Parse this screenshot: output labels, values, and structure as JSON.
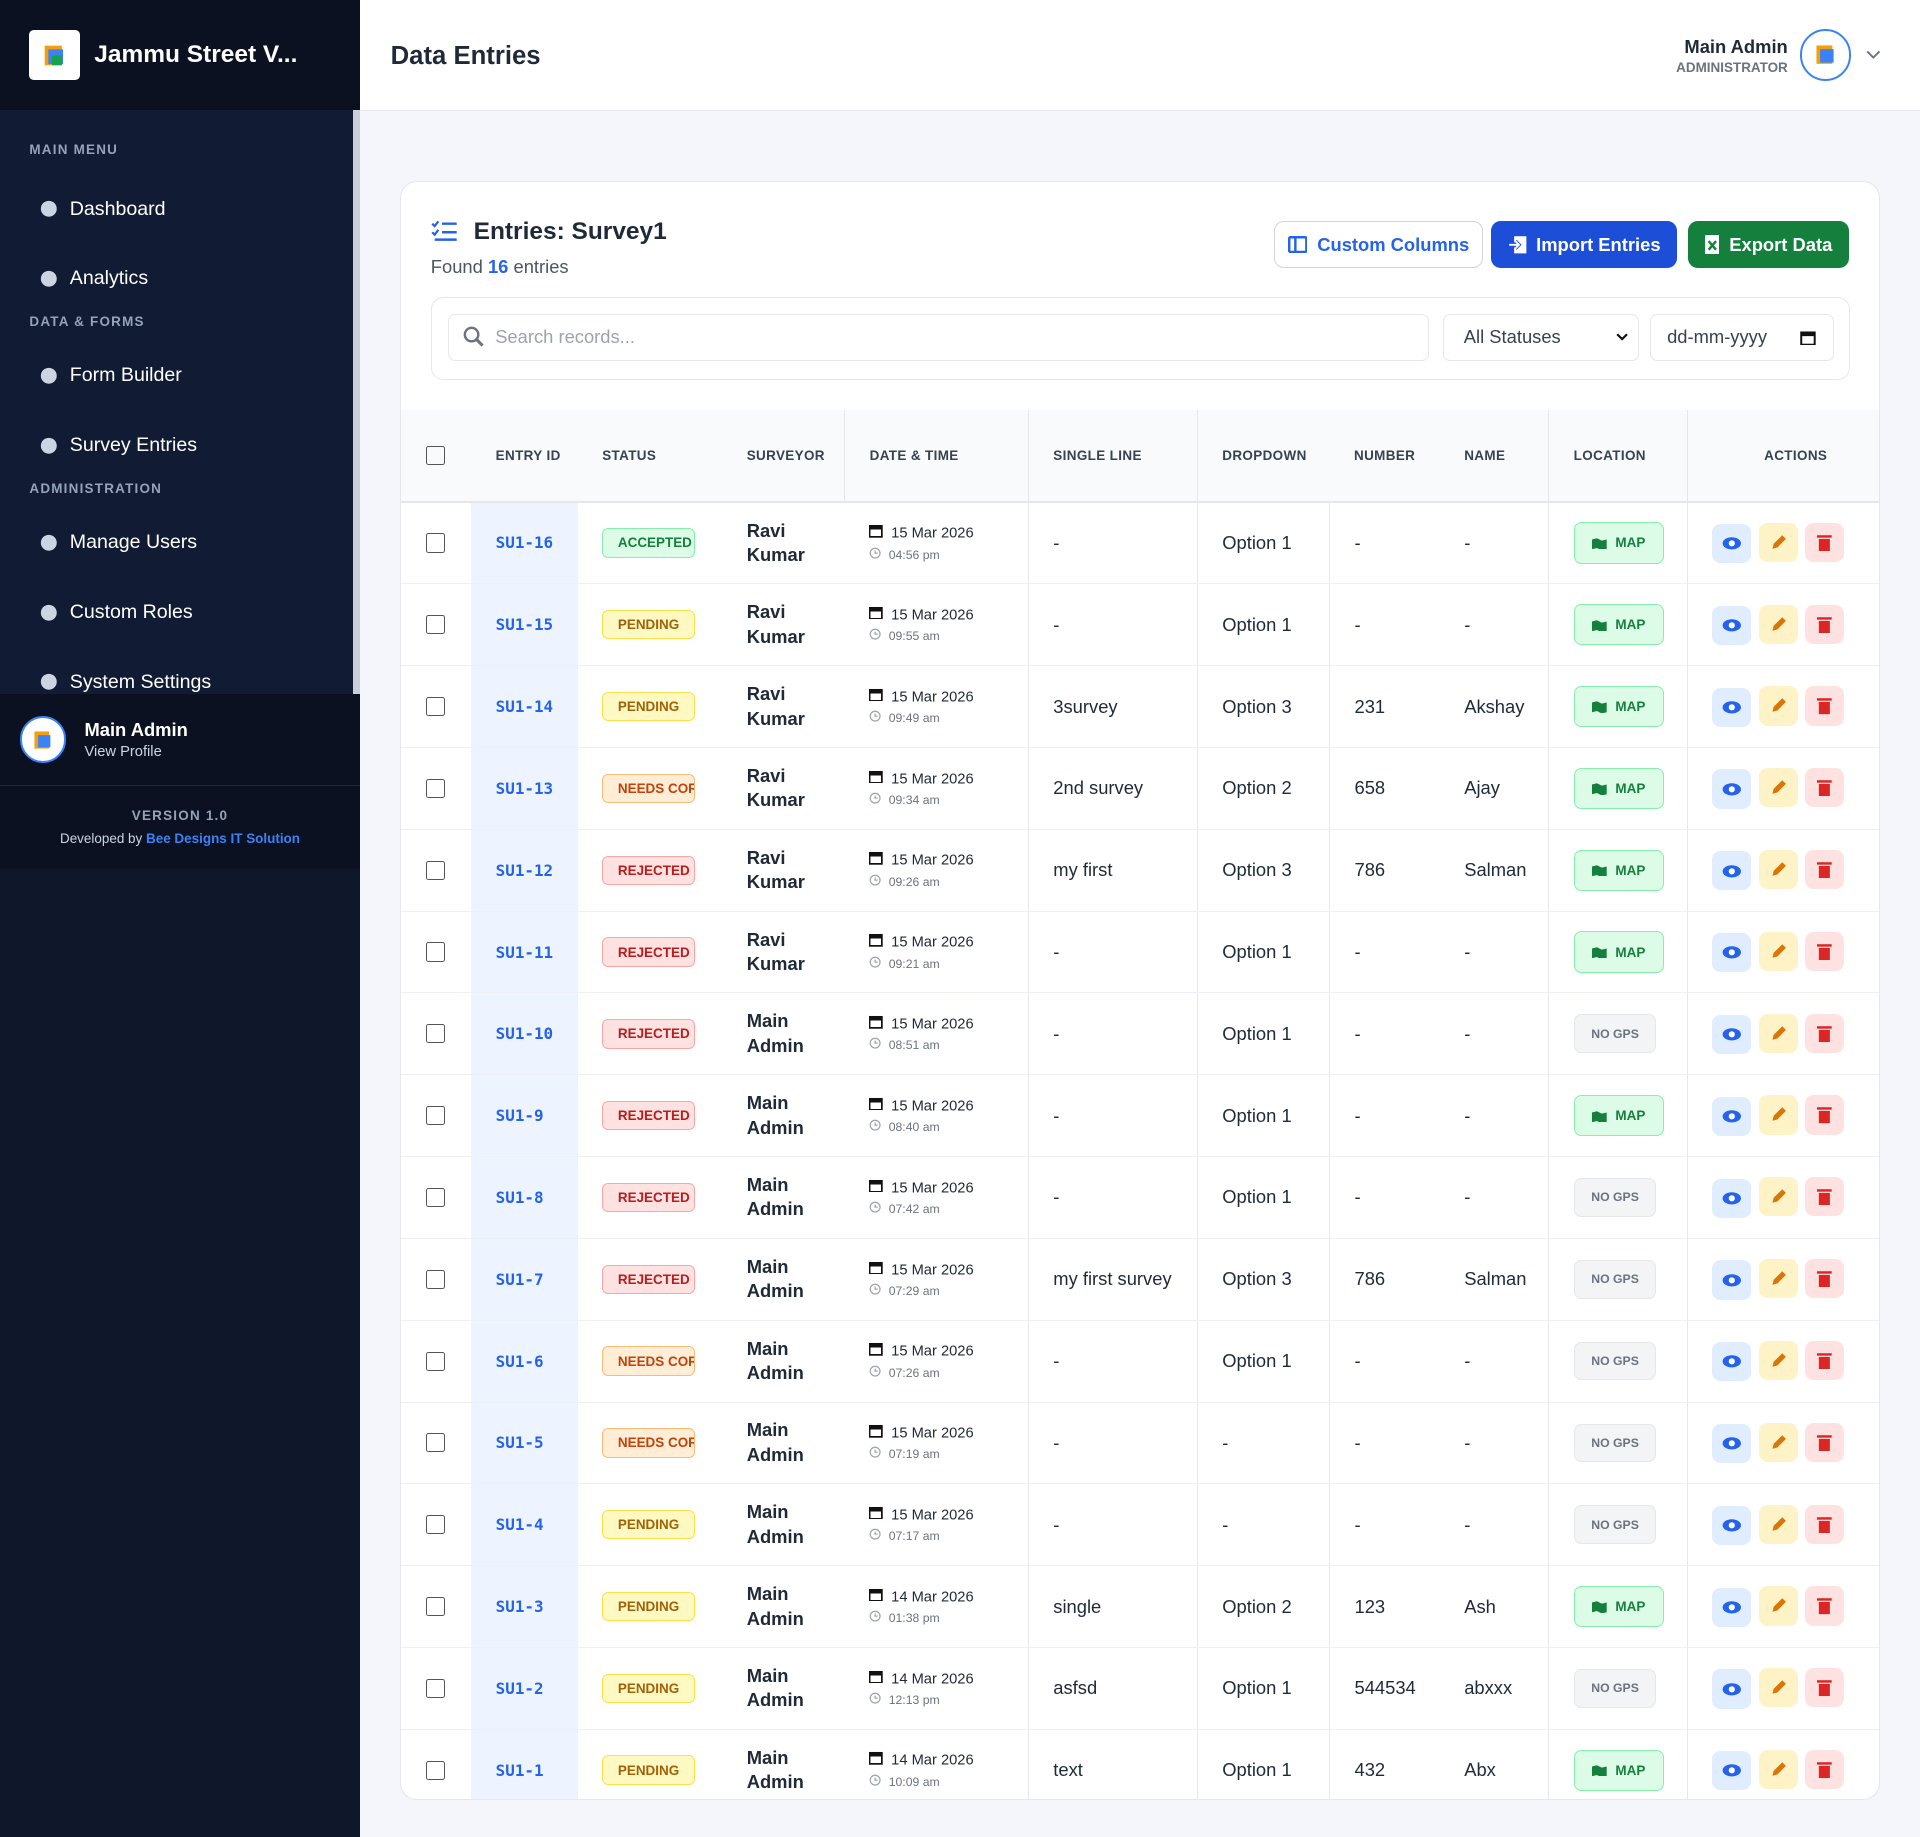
{
  "sidebar": {
    "brand": "Jammu Street V...",
    "sections": [
      {
        "title": "MAIN MENU",
        "items": [
          "Dashboard",
          "Analytics"
        ]
      },
      {
        "title": "DATA & FORMS",
        "items": [
          "Form Builder",
          "Survey Entries"
        ]
      },
      {
        "title": "ADMINISTRATION",
        "items": [
          "Manage Users",
          "Custom Roles",
          "System Settings"
        ]
      }
    ],
    "profile": {
      "name": "Main Admin",
      "link": "View Profile"
    },
    "version": "VERSION 1.0",
    "developed_by": "Developed by",
    "developer": "Bee Designs IT Solution"
  },
  "header": {
    "title": "Data Entries",
    "user": "Main Admin",
    "role": "ADMINISTRATOR"
  },
  "card": {
    "title": "Entries: Survey1",
    "found_prefix": "Found",
    "found_count": 16,
    "found_suffix": "entries",
    "buttons": [
      "Custom Columns",
      "Import Entries",
      "Export Data"
    ],
    "search_placeholder": "Search records...",
    "status_filter": "All Statuses",
    "date_placeholder": "dd-mm-yyyy"
  },
  "table": {
    "columns": [
      "ENTRY ID",
      "STATUS",
      "SURVEYOR",
      "DATE & TIME",
      "SINGLE LINE",
      "DROPDOWN",
      "NUMBER",
      "NAME",
      "LOCATION",
      "ACTIONS"
    ],
    "rows": [
      [
        "SU1-16",
        "ACCEPTED",
        "Ravi Kumar",
        "15 Mar 2026",
        "04:56 pm",
        "-",
        "Option 1",
        "-",
        "-",
        "MAP"
      ],
      [
        "SU1-15",
        "PENDING",
        "Ravi Kumar",
        "15 Mar 2026",
        "09:55 am",
        "-",
        "Option 1",
        "-",
        "-",
        "MAP"
      ],
      [
        "SU1-14",
        "PENDING",
        "Ravi Kumar",
        "15 Mar 2026",
        "09:49 am",
        "3survey",
        "Option 3",
        "231",
        "Akshay",
        "MAP"
      ],
      [
        "SU1-13",
        "NEEDS CORRECTION",
        "Ravi Kumar",
        "15 Mar 2026",
        "09:34 am",
        "2nd survey",
        "Option 2",
        "658",
        "Ajay",
        "MAP"
      ],
      [
        "SU1-12",
        "REJECTED",
        "Ravi Kumar",
        "15 Mar 2026",
        "09:26 am",
        "my first",
        "Option 3",
        "786",
        "Salman",
        "MAP"
      ],
      [
        "SU1-11",
        "REJECTED",
        "Ravi Kumar",
        "15 Mar 2026",
        "09:21 am",
        "-",
        "Option 1",
        "-",
        "-",
        "MAP"
      ],
      [
        "SU1-10",
        "REJECTED",
        "Main Admin",
        "15 Mar 2026",
        "08:51 am",
        "-",
        "Option 1",
        "-",
        "-",
        "NO GPS"
      ],
      [
        "SU1-9",
        "REJECTED",
        "Main Admin",
        "15 Mar 2026",
        "08:40 am",
        "-",
        "Option 1",
        "-",
        "-",
        "MAP"
      ],
      [
        "SU1-8",
        "REJECTED",
        "Main Admin",
        "15 Mar 2026",
        "07:42 am",
        "-",
        "Option 1",
        "-",
        "-",
        "NO GPS"
      ],
      [
        "SU1-7",
        "REJECTED",
        "Main Admin",
        "15 Mar 2026",
        "07:29 am",
        "my first survey",
        "Option 3",
        "786",
        "Salman",
        "NO GPS"
      ],
      [
        "SU1-6",
        "NEEDS CORRECTION",
        "Main Admin",
        "15 Mar 2026",
        "07:26 am",
        "-",
        "Option 1",
        "-",
        "-",
        "NO GPS"
      ],
      [
        "SU1-5",
        "NEEDS CORRECTION",
        "Main Admin",
        "15 Mar 2026",
        "07:19 am",
        "-",
        "-",
        "-",
        "-",
        "NO GPS"
      ],
      [
        "SU1-4",
        "PENDING",
        "Main Admin",
        "15 Mar 2026",
        "07:17 am",
        "-",
        "-",
        "-",
        "-",
        "NO GPS"
      ],
      [
        "SU1-3",
        "PENDING",
        "Main Admin",
        "14 Mar 2026",
        "01:38 pm",
        "single",
        "Option 2",
        "123",
        "Ash",
        "MAP"
      ],
      [
        "SU1-2",
        "PENDING",
        "Main Admin",
        "14 Mar 2026",
        "12:13 pm",
        "asfsd",
        "Option 1",
        "544534",
        "abxxx",
        "NO GPS"
      ],
      [
        "SU1-1",
        "PENDING",
        "Main Admin",
        "14 Mar 2026",
        "10:09 am",
        "text",
        "Option 1",
        "432",
        "Abx",
        "MAP"
      ]
    ]
  }
}
